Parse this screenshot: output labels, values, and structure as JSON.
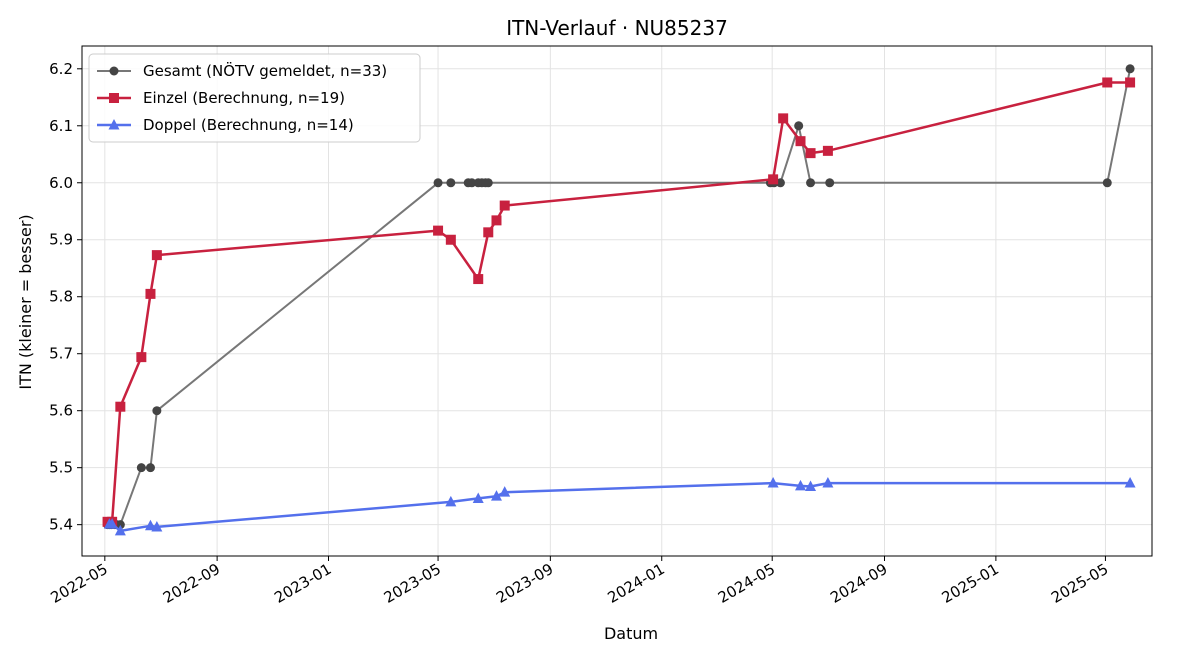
{
  "chart_data": {
    "type": "line",
    "title": "ITN-Verlauf · NU85237",
    "xlabel": "Datum",
    "ylabel": "ITN  (kleiner = besser)",
    "x_axis_type": "date",
    "xlim": [
      "2022-04-06",
      "2025-06-21"
    ],
    "ylim": [
      5.345,
      6.24
    ],
    "grid": true,
    "legend_position": "top-left",
    "x_ticks": [
      "2022-05-01",
      "2022-09-01",
      "2023-01-01",
      "2023-05-01",
      "2023-09-01",
      "2024-01-01",
      "2024-05-01",
      "2024-09-01",
      "2025-01-01",
      "2025-05-01"
    ],
    "x_tick_labels": [
      "2022-05",
      "2022-09",
      "2023-01",
      "2023-05",
      "2023-09",
      "2024-01",
      "2024-05",
      "2024-09",
      "2025-01",
      "2025-05"
    ],
    "y_ticks": [
      5.4,
      5.5,
      5.6,
      5.7,
      5.8,
      5.9,
      6.0,
      6.1,
      6.2
    ],
    "y_tick_labels": [
      "5.4",
      "5.5",
      "5.6",
      "5.7",
      "5.8",
      "5.9",
      "6.0",
      "6.1",
      "6.2"
    ],
    "series": [
      {
        "name": "Gesamt (NÖTV gemeldet, n=33)",
        "color": "#777777",
        "marker_color": "#444444",
        "marker": "circle",
        "points": [
          {
            "x": "2022-05-04",
            "y": 5.4
          },
          {
            "x": "2022-05-06",
            "y": 5.4
          },
          {
            "x": "2022-05-08",
            "y": 5.4
          },
          {
            "x": "2022-05-12",
            "y": 5.4
          },
          {
            "x": "2022-05-14",
            "y": 5.4
          },
          {
            "x": "2022-05-18",
            "y": 5.4
          },
          {
            "x": "2022-06-10",
            "y": 5.5
          },
          {
            "x": "2022-06-20",
            "y": 5.5
          },
          {
            "x": "2022-06-27",
            "y": 5.6
          },
          {
            "x": "2023-05-01",
            "y": 6.0
          },
          {
            "x": "2023-05-15",
            "y": 6.0
          },
          {
            "x": "2023-06-03",
            "y": 6.0
          },
          {
            "x": "2023-06-07",
            "y": 6.0
          },
          {
            "x": "2023-06-14",
            "y": 6.0
          },
          {
            "x": "2023-06-18",
            "y": 6.0
          },
          {
            "x": "2023-06-22",
            "y": 6.0
          },
          {
            "x": "2023-06-25",
            "y": 6.0
          },
          {
            "x": "2024-04-29",
            "y": 6.0
          },
          {
            "x": "2024-05-03",
            "y": 6.0
          },
          {
            "x": "2024-05-10",
            "y": 6.0
          },
          {
            "x": "2024-05-30",
            "y": 6.1
          },
          {
            "x": "2024-06-12",
            "y": 6.0
          },
          {
            "x": "2024-07-03",
            "y": 6.0
          },
          {
            "x": "2025-05-03",
            "y": 6.0
          },
          {
            "x": "2025-05-28",
            "y": 6.2
          }
        ]
      },
      {
        "name": "Einzel (Berechnung, n=19)",
        "color": "#c8213f",
        "marker_color": "#c8213f",
        "marker": "square",
        "points": [
          {
            "x": "2022-05-04",
            "y": 5.405
          },
          {
            "x": "2022-05-09",
            "y": 5.405
          },
          {
            "x": "2022-05-18",
            "y": 5.607
          },
          {
            "x": "2022-06-10",
            "y": 5.694
          },
          {
            "x": "2022-06-20",
            "y": 5.805
          },
          {
            "x": "2022-06-27",
            "y": 5.873
          },
          {
            "x": "2023-05-01",
            "y": 5.916
          },
          {
            "x": "2023-05-15",
            "y": 5.9
          },
          {
            "x": "2023-06-14",
            "y": 5.831
          },
          {
            "x": "2023-06-25",
            "y": 5.913
          },
          {
            "x": "2023-07-04",
            "y": 5.934
          },
          {
            "x": "2023-07-13",
            "y": 5.96
          },
          {
            "x": "2024-05-02",
            "y": 6.006
          },
          {
            "x": "2024-05-13",
            "y": 6.113
          },
          {
            "x": "2024-06-01",
            "y": 6.073
          },
          {
            "x": "2024-06-12",
            "y": 6.052
          },
          {
            "x": "2024-07-01",
            "y": 6.056
          },
          {
            "x": "2025-05-03",
            "y": 6.176
          },
          {
            "x": "2025-05-28",
            "y": 6.176
          }
        ]
      },
      {
        "name": "Doppel (Berechnung, n=14)",
        "color": "#5470ec",
        "marker_color": "#5470ec",
        "marker": "triangle",
        "points": [
          {
            "x": "2022-05-06",
            "y": 5.401
          },
          {
            "x": "2022-05-09",
            "y": 5.401
          },
          {
            "x": "2022-05-18",
            "y": 5.389
          },
          {
            "x": "2022-06-20",
            "y": 5.398
          },
          {
            "x": "2022-06-27",
            "y": 5.396
          },
          {
            "x": "2023-05-15",
            "y": 5.44
          },
          {
            "x": "2023-06-14",
            "y": 5.446
          },
          {
            "x": "2023-07-04",
            "y": 5.45
          },
          {
            "x": "2023-07-13",
            "y": 5.457
          },
          {
            "x": "2024-05-02",
            "y": 5.473
          },
          {
            "x": "2024-06-01",
            "y": 5.468
          },
          {
            "x": "2024-06-12",
            "y": 5.467
          },
          {
            "x": "2024-07-01",
            "y": 5.473
          },
          {
            "x": "2025-05-28",
            "y": 5.473
          }
        ]
      }
    ]
  }
}
